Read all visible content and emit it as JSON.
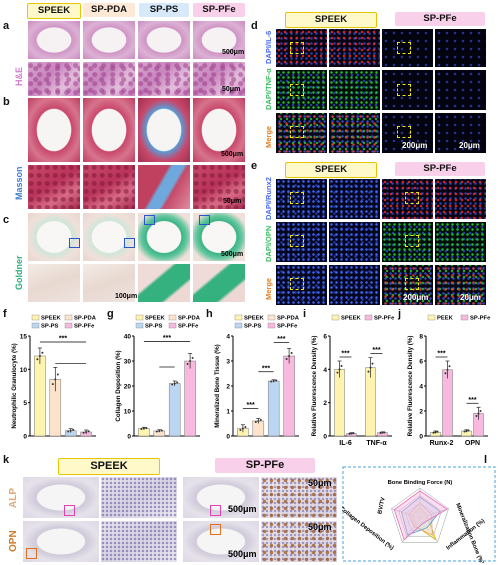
{
  "panel_letters": {
    "a": "a",
    "b": "b",
    "c": "c",
    "d": "d",
    "e": "e",
    "f": "f",
    "g": "g",
    "h": "h",
    "i": "i",
    "j": "j",
    "k": "k",
    "l": "l"
  },
  "group_headers": {
    "speek": "SPEEK",
    "sp_pda": "SP-PDA",
    "sp_ps": "SP-PS",
    "sp_pfe": "SP-PFe"
  },
  "stain_labels": {
    "he": "H&E",
    "masson": "Masson",
    "goldner": "Goldner",
    "alp": "ALP",
    "opn": "OPN"
  },
  "fluor_labels": {
    "dapi_il6": "DAPI/IL-6",
    "dapi_tnfa": "DAPI/TNF-α",
    "merge1": "Merge",
    "dapi_runx2": "DAPI/Runx2",
    "dapi_opn": "DAPI/OPN",
    "merge2": "Merge"
  },
  "scale_labels": {
    "s500": "500μm",
    "s50": "50μm",
    "s100": "100μm",
    "s200": "200μm",
    "s20": "20μm"
  },
  "colors": {
    "speek_bg": "#fff8c8",
    "speek_border": "#e6c600",
    "pda_bg": "#fde9d6",
    "ps_bg": "#d8e9fb",
    "pfe_bg": "#f9d0ea",
    "bar_speek": "#fff3b0",
    "bar_pda": "#fde3cc",
    "bar_ps": "#bcd6f2",
    "bar_pfe": "#f7b9dd",
    "he_label": "#d47bd0",
    "masson_label": "#3c7fd0",
    "goldner_label": "#2fae78",
    "alp_label": "#e0a97a",
    "opn_label": "#d07a2a",
    "radar_frame": "#4aa3e0"
  },
  "chart_data": [
    {
      "panel": "f",
      "type": "bar",
      "ylabel": "Neutrophilic Granulocyte (%)",
      "ylim": [
        0,
        15
      ],
      "yticks": [
        "0",
        "5",
        "10",
        "15"
      ],
      "legend": [
        "SPEEK",
        "SP-PDA",
        "SP-PS",
        "SP-PFe"
      ],
      "categories": [
        "SPEEK",
        "SP-PDA",
        "SP-PS",
        "SP-PFe"
      ],
      "values": [
        12.0,
        8.5,
        0.8,
        0.6
      ],
      "errors": [
        1.2,
        1.8,
        0.3,
        0.3
      ],
      "significance": "***"
    },
    {
      "panel": "g",
      "type": "bar",
      "ylabel": "Collagen Deposition (%)",
      "ylim": [
        0,
        40
      ],
      "yticks": [
        "0",
        "10",
        "20",
        "30",
        "40"
      ],
      "legend": [
        "SPEEK",
        "SP-PDA",
        "SP-PS",
        "SP-PFe"
      ],
      "categories": [
        "SPEEK",
        "SP-PDA",
        "SP-PS",
        "SP-PFe"
      ],
      "values": [
        3.0,
        2.0,
        21.0,
        30.0
      ],
      "errors": [
        0.5,
        0.5,
        1.0,
        3.0
      ],
      "significance": "***"
    },
    {
      "panel": "h",
      "type": "bar",
      "ylabel": "Mineralized Bone Tissue (%)",
      "ylim": [
        0,
        4
      ],
      "yticks": [
        "0",
        "1",
        "2",
        "3",
        "4"
      ],
      "legend": [
        "SPEEK",
        "SP-PDA",
        "SP-PS",
        "SP-PFe"
      ],
      "categories": [
        "SPEEK",
        "SP-PDA",
        "SP-PS",
        "SP-PFe"
      ],
      "values": [
        0.3,
        0.6,
        2.2,
        3.2
      ],
      "errors": [
        0.15,
        0.1,
        0.05,
        0.3
      ],
      "significance": [
        "***",
        "***",
        "***"
      ]
    },
    {
      "panel": "i",
      "type": "bar",
      "ylabel": "Relative Fluorescence Density (%)",
      "ylim": [
        0,
        6
      ],
      "yticks": [
        "0",
        "2",
        "4",
        "6"
      ],
      "legend": [
        "SPEEK",
        "SP-PFe"
      ],
      "categories": [
        "IL-6",
        "TNF-α"
      ],
      "series": [
        {
          "name": "SPEEK",
          "values": [
            4.0,
            4.1
          ],
          "errors": [
            0.5,
            0.6
          ]
        },
        {
          "name": "SP-PFe",
          "values": [
            0.15,
            0.2
          ],
          "errors": [
            0.05,
            0.05
          ]
        }
      ],
      "significance": [
        "***",
        "***"
      ]
    },
    {
      "panel": "j",
      "type": "bar",
      "ylabel": "Relative Fluorescence Density (%)",
      "ylim": [
        0,
        8
      ],
      "yticks": [
        "0",
        "2",
        "4",
        "6",
        "8"
      ],
      "legend": [
        "PEEK",
        "SP-PFe"
      ],
      "categories": [
        "Runx-2",
        "OPN"
      ],
      "series": [
        {
          "name": "PEEK",
          "values": [
            0.3,
            0.4
          ],
          "errors": [
            0.1,
            0.1
          ]
        },
        {
          "name": "SP-PFe",
          "values": [
            5.3,
            1.8
          ],
          "errors": [
            0.7,
            0.5
          ]
        }
      ],
      "significance": [
        "***",
        "***"
      ]
    },
    {
      "panel": "l",
      "type": "radar",
      "axes": [
        "Bone Binding Force (N)",
        "Mineralization Bone (%)",
        "Inflammation (%)",
        "Collagen Deposition (%)",
        "BV/TV"
      ],
      "series": [
        {
          "name": "SPEEK",
          "values": [
            0.35,
            0.25,
            0.9,
            0.3,
            0.3
          ]
        },
        {
          "name": "SP-PDA",
          "values": [
            0.5,
            0.4,
            0.7,
            0.35,
            0.4
          ]
        },
        {
          "name": "SP-PS",
          "values": [
            0.7,
            0.7,
            0.4,
            0.7,
            0.65
          ]
        },
        {
          "name": "SP-PFe",
          "values": [
            0.9,
            0.95,
            0.2,
            0.9,
            0.9
          ]
        }
      ]
    }
  ]
}
